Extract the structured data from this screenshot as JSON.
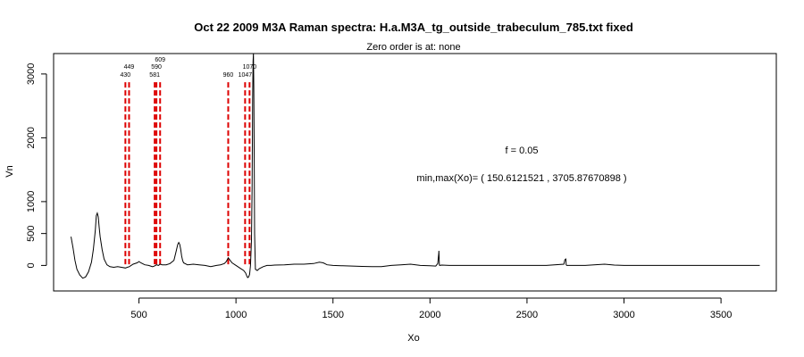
{
  "chart_data": {
    "type": "line",
    "title": "Oct 22 2009 M3A Raman spectra: H.a.M3A_tg_outside_trabeculum_785.txt fixed",
    "subtitle": "Zero order is at:  none",
    "xlabel": "Xo",
    "ylabel": "Vn",
    "xlim": [
      60,
      3785
    ],
    "ylim": [
      -400,
      3320
    ],
    "x_ticks": [
      500,
      1000,
      1500,
      2000,
      2500,
      3000,
      3500
    ],
    "y_ticks": [
      0,
      500,
      1000,
      2000,
      3000
    ],
    "x_tick_labels": [
      "500",
      "1000",
      "1500",
      "2000",
      "2500",
      "3000",
      "3500"
    ],
    "y_tick_labels": [
      "0",
      "500",
      "1000",
      "2000",
      "3000"
    ],
    "grid": false,
    "legend": "none",
    "series": [
      {
        "color": "#000000",
        "x": [
          150,
          160,
          170,
          180,
          195,
          210,
          225,
          240,
          255,
          265,
          275,
          280,
          285,
          290,
          295,
          300,
          310,
          320,
          335,
          350,
          370,
          390,
          410,
          430,
          440,
          450,
          470,
          490,
          500,
          510,
          530,
          550,
          560,
          570,
          580,
          590,
          600,
          610,
          620,
          640,
          660,
          680,
          690,
          700,
          705,
          710,
          715,
          720,
          725,
          730,
          750,
          780,
          810,
          840,
          870,
          900,
          920,
          940,
          950,
          960,
          970,
          980,
          1000,
          1020,
          1040,
          1050,
          1055,
          1060,
          1065,
          1070,
          1075,
          1080,
          1083,
          1086,
          1088,
          1090,
          1092,
          1094,
          1096,
          1100,
          1110,
          1120,
          1140,
          1160,
          1180,
          1200,
          1250,
          1300,
          1350,
          1400,
          1430,
          1450,
          1470,
          1500,
          1550,
          1600,
          1650,
          1700,
          1750,
          1800,
          1850,
          1900,
          1950,
          2000,
          2030,
          2040,
          2045,
          2046,
          2047,
          2048,
          2050,
          2060,
          2100,
          2150,
          2200,
          2300,
          2400,
          2500,
          2600,
          2690,
          2695,
          2700,
          2701,
          2702,
          2705,
          2710,
          2800,
          2900,
          2950,
          3000,
          3100,
          3200,
          3300,
          3400,
          3500,
          3600,
          3700
        ],
        "y": [
          450,
          280,
          80,
          -60,
          -150,
          -200,
          -180,
          -100,
          50,
          250,
          550,
          780,
          820,
          760,
          600,
          450,
          250,
          100,
          10,
          -20,
          -30,
          -20,
          -30,
          -40,
          -30,
          -20,
          20,
          40,
          60,
          40,
          10,
          0,
          -10,
          -20,
          -10,
          10,
          0,
          20,
          10,
          10,
          30,
          80,
          200,
          330,
          360,
          330,
          250,
          150,
          80,
          40,
          10,
          20,
          10,
          0,
          -20,
          0,
          10,
          30,
          60,
          120,
          80,
          40,
          0,
          -40,
          -80,
          -120,
          -160,
          -190,
          -180,
          -140,
          0,
          400,
          1200,
          2600,
          3200,
          3320,
          2800,
          1600,
          500,
          -60,
          -80,
          -50,
          -20,
          0,
          0,
          5,
          10,
          20,
          20,
          30,
          50,
          40,
          10,
          0,
          -5,
          -10,
          -15,
          -20,
          -20,
          0,
          10,
          20,
          0,
          -5,
          -10,
          30,
          180,
          230,
          150,
          10,
          0,
          5,
          0,
          0,
          0,
          0,
          0,
          0,
          0,
          20,
          90,
          100,
          60,
          10,
          0,
          0,
          0,
          20,
          5,
          0,
          0,
          0,
          0,
          0,
          0,
          0,
          0
        ],
        "peaks_x": [
          2046,
          2701
        ]
      }
    ],
    "peak_markers": [
      {
        "x": 430,
        "label": "430",
        "color": "#dd0000"
      },
      {
        "x": 449,
        "label": "449",
        "color": "#dd0000"
      },
      {
        "x": 581,
        "label": "581",
        "color": "#dd0000"
      },
      {
        "x": 590,
        "label": "590",
        "color": "#dd0000"
      },
      {
        "x": 609,
        "label": "609",
        "color": "#dd0000"
      },
      {
        "x": 960,
        "label": "960",
        "color": "#dd0000"
      },
      {
        "x": 1047,
        "label": "1047",
        "color": "#dd0000"
      },
      {
        "x": 1070,
        "label": "1070",
        "color": "#dd0000"
      }
    ],
    "annotations": [
      {
        "text": "f =  0.05"
      },
      {
        "text": "min,max(Xo)= ( 150.6121521 , 3705.87670898 )"
      }
    ]
  }
}
